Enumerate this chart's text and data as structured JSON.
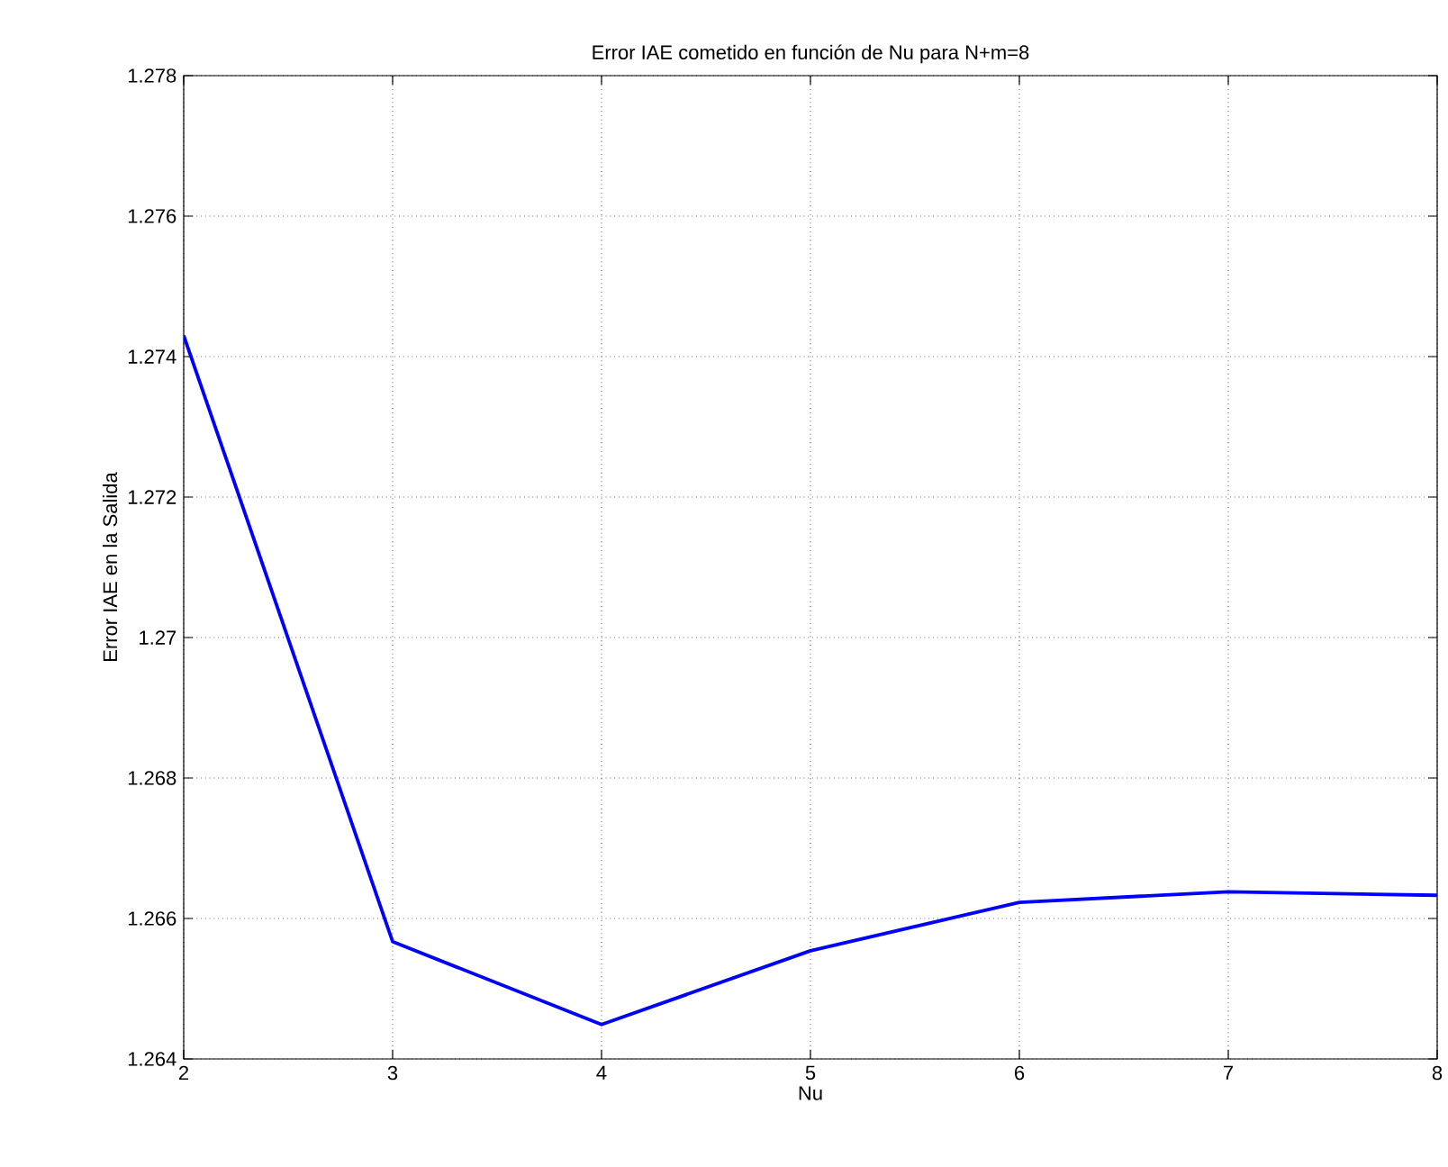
{
  "chart_data": {
    "type": "line",
    "title": "Error IAE cometido en función de Nu para N+m=8",
    "xlabel": "Nu",
    "ylabel": "Error IAE en la Salida",
    "x": [
      2,
      3,
      4,
      5,
      6,
      7,
      8
    ],
    "series": [
      {
        "color": "#0000ff",
        "values": [
          1.2743,
          1.26567,
          1.26449,
          1.26554,
          1.26623,
          1.26638,
          1.26633
        ]
      }
    ],
    "xlim": [
      2,
      8
    ],
    "xticks": [
      2,
      3,
      4,
      5,
      6,
      7,
      8
    ],
    "ylim": [
      1.264,
      1.278
    ],
    "yticks": [
      1.264,
      1.266,
      1.268,
      1.27,
      1.272,
      1.274,
      1.276,
      1.278
    ],
    "grid": true,
    "line_style": "solid",
    "marker": "none"
  }
}
